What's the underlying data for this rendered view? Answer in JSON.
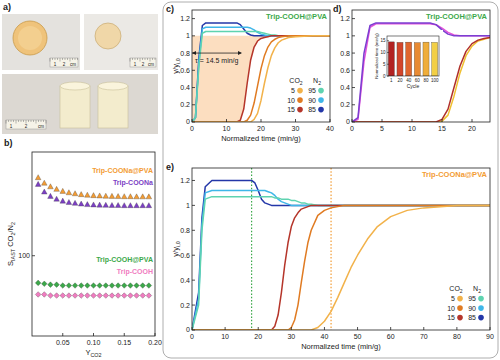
{
  "figure": {
    "panel": "a)",
    "ruler_labels": [
      "1",
      "2",
      "cm"
    ]
  },
  "chart_data": [
    {
      "panel": "b)",
      "type": "scatter",
      "log": "y",
      "legend": "right",
      "xlabel": [
        {
          "text": "Y"
        },
        {
          "text": "CO2",
          "sub": true
        }
      ],
      "ylabel": [
        {
          "text": "S"
        },
        {
          "text": "IAST",
          "sub": true
        },
        {
          "text": " CO"
        },
        {
          "text": "2",
          "sub": true
        },
        {
          "text": "/N"
        },
        {
          "text": "2",
          "sub": true
        }
      ],
      "xlim": [
        0,
        0.2
      ],
      "xticks": [
        0.05,
        {
          "value": 0.1,
          "label": "0.10"
        },
        0.15,
        {
          "value": 0.2,
          "label": "0.20"
        }
      ],
      "ylim": [
        20,
        800
      ],
      "yticks": [
        100
      ],
      "x": [
        0.01,
        0.02,
        0.03,
        0.04,
        0.05,
        0.06,
        0.07,
        0.08,
        0.09,
        0.1,
        0.11,
        0.12,
        0.13,
        0.14,
        0.15,
        0.16,
        0.17,
        0.18,
        0.19
      ],
      "series": [
        {
          "name": "Trip-COONa@PVA",
          "color": "#f39c34",
          "marker": "triangle",
          "values": [
            480,
            430,
            400,
            380,
            365,
            355,
            348,
            342,
            338,
            335,
            333,
            331,
            330,
            329,
            328,
            328,
            327,
            327,
            327
          ]
        },
        {
          "name": "Trip-COONa",
          "color": "#7c3fc4",
          "marker": "triangle",
          "values": [
            420,
            360,
            330,
            312,
            300,
            292,
            287,
            283,
            280,
            278,
            277,
            276,
            275,
            275,
            274,
            274,
            274,
            274,
            274
          ]
        },
        {
          "name": "Trip-COOH@PVA",
          "color": "#3ca84a",
          "marker": "diamond",
          "values": [
            58,
            57,
            56,
            56,
            55,
            55,
            55,
            55,
            55,
            55,
            55,
            55,
            55,
            55,
            55,
            55,
            55,
            55,
            55
          ]
        },
        {
          "name": "Trip-COOH",
          "color": "#f07cc0",
          "marker": "diamond",
          "values": [
            46,
            46,
            45,
            45,
            45,
            45,
            45,
            45,
            45,
            45,
            45,
            45,
            45,
            45,
            45,
            45,
            45,
            45,
            45
          ]
        }
      ]
    },
    {
      "panel": "c)",
      "type": "line",
      "title": "Trip-COOH@PVA",
      "color": "#3ca84a",
      "legend": "lower-right",
      "legend_headers": [
        [
          {
            "text": "CO"
          },
          {
            "text": "2",
            "sub": true
          }
        ],
        [
          {
            "text": "N"
          },
          {
            "text": "2",
            "sub": true
          }
        ]
      ],
      "xlabel": "Normalized time (min/g)",
      "ylabel": [
        {
          "text": "y/y"
        },
        {
          "text": "i,0",
          "sub": true
        }
      ],
      "xlim": [
        0,
        40
      ],
      "xticks": [
        0,
        10,
        20,
        30,
        40
      ],
      "ylim": [
        0,
        1.3
      ],
      "yticks": [
        0,
        0.2,
        0.4,
        0.6,
        0.8,
        1,
        1.2
      ],
      "annotations": [
        {
          "text": "τ = 14.5 min/g",
          "x": [
            0,
            14.5
          ],
          "y": 0.8
        }
      ],
      "x": [
        0,
        1,
        2,
        3,
        4,
        5,
        6,
        8,
        10,
        12,
        13,
        14,
        15,
        16,
        17,
        18,
        19,
        20,
        21,
        22,
        23,
        24,
        25,
        26,
        28,
        30,
        35,
        40
      ],
      "series": [
        {
          "name": "5",
          "color": "#f2b24a",
          "values": [
            0,
            0,
            0,
            0,
            0,
            0,
            0,
            0,
            0,
            0,
            0,
            0,
            0,
            0,
            0,
            0.03,
            0.1,
            0.25,
            0.45,
            0.63,
            0.77,
            0.86,
            0.92,
            0.95,
            0.98,
            0.99,
            1,
            1
          ]
        },
        {
          "name": "10",
          "color": "#e07b22",
          "values": [
            0,
            0,
            0,
            0,
            0,
            0,
            0,
            0,
            0,
            0,
            0,
            0,
            0,
            0.02,
            0.08,
            0.22,
            0.42,
            0.62,
            0.77,
            0.87,
            0.93,
            0.96,
            0.98,
            0.99,
            1,
            1,
            1,
            1
          ]
        },
        {
          "name": "15",
          "color": "#b5352a",
          "type": "area",
          "values": [
            0,
            0,
            0,
            0,
            0,
            0,
            0,
            0,
            0,
            0,
            0,
            0.02,
            0.15,
            0.45,
            0.72,
            0.87,
            0.94,
            0.97,
            0.98,
            0.99,
            1,
            1,
            1,
            1,
            1,
            1,
            1,
            1
          ]
        },
        {
          "name": "95",
          "color": "#5ed3b0",
          "values": [
            0,
            0.05,
            0.65,
            1.03,
            1.05,
            1.05,
            1.05,
            1.05,
            1.05,
            1.05,
            1.05,
            1.05,
            1.05,
            1.05,
            1.05,
            1.05,
            1.05,
            1.04,
            1.03,
            1.02,
            1.01,
            1.01,
            1,
            1,
            1,
            1,
            1,
            1
          ]
        },
        {
          "name": "90",
          "color": "#3fb6e8",
          "values": [
            0,
            0.05,
            0.7,
            1.08,
            1.1,
            1.1,
            1.1,
            1.1,
            1.1,
            1.1,
            1.1,
            1.1,
            1.1,
            1.1,
            1.09,
            1.07,
            1.04,
            1.02,
            1.01,
            1,
            1,
            1,
            1,
            1,
            1,
            1,
            1,
            1
          ]
        },
        {
          "name": "85",
          "color": "#2337a8",
          "values": [
            0,
            0.05,
            0.75,
            1.12,
            1.15,
            1.15,
            1.15,
            1.15,
            1.15,
            1.15,
            1.15,
            1.13,
            1.08,
            1.03,
            1.01,
            1,
            1,
            1,
            1,
            1,
            1,
            1,
            1,
            1,
            1,
            1,
            1,
            1
          ]
        }
      ]
    },
    {
      "panel": "d)",
      "type": "line",
      "title": "Trip-COOH@PVA",
      "color": "#3ca84a",
      "xlim": [
        0,
        23
      ],
      "xticks": [
        0,
        5,
        10,
        15,
        20
      ],
      "ylim": [
        0,
        1.3
      ],
      "yticks": [
        0,
        0.2,
        0.4,
        0.6,
        0.8,
        1,
        1.2
      ],
      "x": [
        0,
        1,
        2,
        3,
        4,
        5,
        6,
        8,
        10,
        12,
        13,
        14,
        15,
        16,
        17,
        18,
        19,
        20,
        21,
        22,
        23
      ],
      "series": [
        {
          "color": "#7b3fd1",
          "values": [
            0,
            0.05,
            0.8,
            1.12,
            1.15,
            1.15,
            1.15,
            1.15,
            1.15,
            1.15,
            1.15,
            1.13,
            1.07,
            1.02,
            1,
            1,
            1,
            1,
            1,
            1,
            1
          ]
        },
        {
          "color": "#e552d9",
          "values": [
            0,
            0.03,
            0.7,
            1.1,
            1.14,
            1.14,
            1.14,
            1.14,
            1.14,
            1.14,
            1.14,
            1.13,
            1.09,
            1.04,
            1.01,
            1,
            1,
            1,
            1,
            1,
            1
          ]
        },
        {
          "color": "#b0302a",
          "values": [
            0,
            0,
            0,
            0,
            0,
            0,
            0,
            0,
            0,
            0,
            0,
            0,
            0.03,
            0.15,
            0.4,
            0.65,
            0.82,
            0.91,
            0.95,
            0.97,
            0.98
          ]
        },
        {
          "color": "#f0c030",
          "values": [
            0,
            0,
            0,
            0,
            0,
            0,
            0,
            0,
            0,
            0,
            0,
            0,
            0.01,
            0.08,
            0.3,
            0.57,
            0.77,
            0.88,
            0.94,
            0.96,
            0.98
          ]
        }
      ]
    },
    {
      "type": "bar",
      "xlabel": "Cycle",
      "ylabel": "Normalized time (min/g)",
      "categories": [
        "1",
        "20",
        "40",
        "60",
        "80",
        "100"
      ],
      "values": [
        14.5,
        14.3,
        14.4,
        14.2,
        14.4,
        14.3
      ],
      "colors": [
        "#b22222",
        "#d2452b",
        "#e0662e",
        "#e88a33",
        "#efad3a",
        "#f2cf45"
      ],
      "ylim": [
        0,
        17
      ],
      "yticks": [
        0,
        5,
        10,
        15
      ]
    },
    {
      "panel": "e)",
      "type": "line",
      "title": "Trip-COONa@PVA",
      "color": "#f39c34",
      "legend": "lower-right",
      "legend_headers": [
        [
          {
            "text": "CO"
          },
          {
            "text": "2",
            "sub": true
          }
        ],
        [
          {
            "text": "N"
          },
          {
            "text": "2",
            "sub": true
          }
        ]
      ],
      "xlabel": "Normalized time (min/g)",
      "ylabel": [
        {
          "text": "y/y"
        },
        {
          "text": "i,0",
          "sub": true
        }
      ],
      "xlim": [
        0,
        90
      ],
      "xticks": [
        0,
        10,
        20,
        30,
        40,
        50,
        60,
        70,
        80,
        90
      ],
      "ylim": [
        0,
        1.3
      ],
      "yticks": [
        0,
        0.2,
        0.4,
        0.6,
        0.8,
        1,
        1.2
      ],
      "vlines": [
        {
          "value": 18,
          "color": "#3ca84a"
        },
        {
          "value": 42,
          "color": "#f39c34"
        }
      ],
      "x": [
        0,
        2,
        3,
        4,
        6,
        10,
        15,
        18,
        19,
        20,
        21,
        22,
        23,
        24,
        25,
        26,
        27,
        28,
        29,
        30,
        31,
        32,
        33,
        34,
        35,
        36,
        38,
        40,
        42,
        44,
        46,
        48,
        50,
        53,
        56,
        60,
        65,
        70,
        80,
        90
      ],
      "series": [
        {
          "name": "5",
          "color": "#f2b24a",
          "values": [
            0,
            0,
            0,
            0,
            0,
            0,
            0,
            0,
            0,
            0,
            0,
            0,
            0,
            0,
            0,
            0,
            0,
            0,
            0,
            0,
            0,
            0,
            0,
            0,
            0,
            0,
            0.02,
            0.07,
            0.15,
            0.26,
            0.38,
            0.5,
            0.6,
            0.73,
            0.83,
            0.91,
            0.96,
            0.98,
            1,
            1
          ]
        },
        {
          "name": "10",
          "color": "#e07b22",
          "values": [
            0,
            0,
            0,
            0,
            0,
            0,
            0,
            0,
            0,
            0,
            0,
            0,
            0,
            0,
            0,
            0,
            0,
            0,
            0,
            0.02,
            0.08,
            0.2,
            0.38,
            0.55,
            0.7,
            0.8,
            0.92,
            0.96,
            0.98,
            0.99,
            1,
            1,
            1,
            1,
            1,
            1,
            1,
            1,
            1,
            1
          ]
        },
        {
          "name": "15",
          "color": "#b5352a",
          "values": [
            0,
            0,
            0,
            0,
            0,
            0,
            0,
            0,
            0,
            0,
            0,
            0,
            0,
            0,
            0.03,
            0.12,
            0.3,
            0.52,
            0.7,
            0.83,
            0.9,
            0.94,
            0.97,
            0.98,
            0.99,
            1,
            1,
            1,
            1,
            1,
            1,
            1,
            1,
            1,
            1,
            1,
            1,
            1,
            1,
            1
          ]
        },
        {
          "name": "95",
          "color": "#5ed3b0",
          "values": [
            0,
            0.2,
            0.8,
            1.05,
            1.07,
            1.07,
            1.07,
            1.07,
            1.07,
            1.07,
            1.07,
            1.07,
            1.07,
            1.07,
            1.06,
            1.06,
            1.05,
            1.05,
            1.05,
            1.04,
            1.04,
            1.03,
            1.02,
            1.02,
            1.01,
            1.01,
            1,
            1,
            1,
            1,
            1,
            1,
            1,
            1,
            1,
            1,
            1,
            1,
            1,
            1
          ]
        },
        {
          "name": "90",
          "color": "#3fb6e8",
          "values": [
            0,
            0.25,
            0.85,
            1.1,
            1.12,
            1.12,
            1.12,
            1.12,
            1.12,
            1.12,
            1.12,
            1.12,
            1.11,
            1.1,
            1.08,
            1.05,
            1.03,
            1.02,
            1.01,
            1,
            1,
            1,
            1,
            1,
            1,
            1,
            1,
            1,
            1,
            1,
            1,
            1,
            1,
            1,
            1,
            1,
            1,
            1,
            1,
            1
          ]
        },
        {
          "name": "85",
          "color": "#2337a8",
          "values": [
            0,
            0.3,
            0.9,
            1.15,
            1.2,
            1.2,
            1.2,
            1.2,
            1.18,
            1.12,
            1.05,
            1.02,
            1.01,
            1,
            1,
            1,
            1,
            1,
            1,
            1,
            1,
            1,
            1,
            1,
            1,
            1,
            1,
            1,
            1,
            1,
            1,
            1,
            1,
            1,
            1,
            1,
            1,
            1,
            1,
            1
          ]
        }
      ]
    }
  ]
}
